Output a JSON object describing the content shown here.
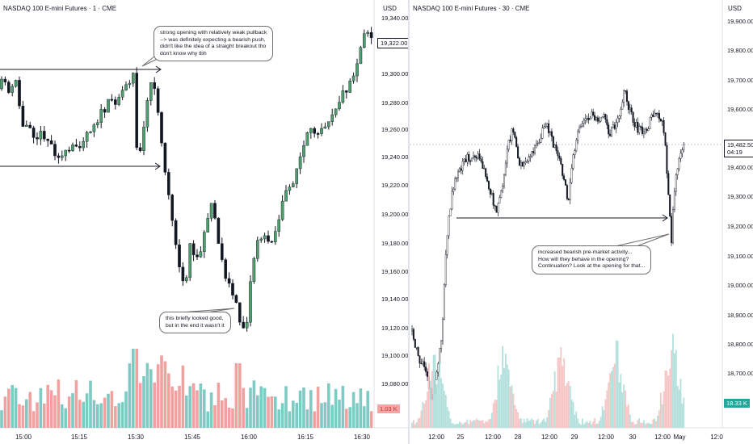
{
  "left_chart": {
    "title": "NASDAQ 100 E-mini Futures · 1 · CME",
    "currency": "USD",
    "price_labels": [
      "19,340.00",
      "19,300.00",
      "19,280.00",
      "19,260.00",
      "19,240.00",
      "19,220.00",
      "19,200.00",
      "19,180.00",
      "19,160.00",
      "19,140.00",
      "19,120.00",
      "19,100.00",
      "19,080.00"
    ],
    "time_labels": [
      "15:00",
      "15:15",
      "15:30",
      "15:45",
      "16:00",
      "16:15",
      "16:30"
    ],
    "last_price": "19,322.00",
    "volume_label": "1.03 K",
    "notes": [
      "strong opening with relatively weak pullback\n--> was definitely expecting a bearish push,\ndidn't like the idea of a straight breakout tho\ndon't know why tbh",
      "this briefly looked good,\nbut in the end it wasn't it"
    ],
    "colors": {
      "up": "#4f9e6e",
      "down": "#131722",
      "vol_up": "#7ecbc4",
      "vol_down": "#f2a1a1"
    }
  },
  "right_chart": {
    "title": "NASDAQ 100 E-mini Futures · 30 · CME",
    "currency": "USD",
    "price_labels": [
      "19,900.00",
      "19,800.00",
      "19,700.00",
      "19,600.00",
      "19,400.00",
      "19,300.00",
      "19,200.00",
      "19,100.00",
      "19,000.00",
      "18,900.00",
      "18,800.00",
      "18,700.00"
    ],
    "time_labels": [
      "12:00",
      "25",
      "12:00",
      "28",
      "12:00",
      "29",
      "12:00",
      "30",
      "12:00",
      "May",
      "12:0"
    ],
    "last_price": "19,482.50",
    "countdown": "04:19",
    "volume_label": "18.33 K",
    "notes": [
      "increased bearish pre-market activity...\nHow will they behave in the opening?\nContinuation? Look at the opening for that..."
    ],
    "colors": {
      "up": "#ffffff",
      "down": "#131722",
      "vol_up": "#b3e0dc",
      "vol_down": "#f6c6c6",
      "volume_tag": "#26a69a"
    }
  }
}
